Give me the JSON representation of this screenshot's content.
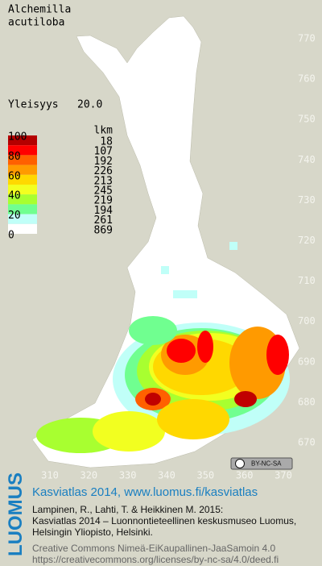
{
  "title": [
    "Alchemilla",
    "acutiloba"
  ],
  "frequency": {
    "label": "Yleisyys",
    "value": "20.0"
  },
  "legend": {
    "header": "lkm",
    "class_labels": [
      100,
      80,
      60,
      40,
      20,
      0
    ],
    "classes": [
      {
        "color": "#b40000",
        "count": 18
      },
      {
        "color": "#ff0000",
        "count": 107
      },
      {
        "color": "#ff6000",
        "count": 192
      },
      {
        "color": "#ff9a00",
        "count": 226
      },
      {
        "color": "#ffd800",
        "count": 213
      },
      {
        "color": "#f2ff20",
        "count": 245
      },
      {
        "color": "#a8ff30",
        "count": 219
      },
      {
        "color": "#70ff90",
        "count": 194
      },
      {
        "color": "#c0fff8",
        "count": 261
      },
      {
        "color": "#ffffff",
        "count": 869
      }
    ]
  },
  "map": {
    "yticks": [
      770,
      760,
      750,
      740,
      730,
      720,
      710,
      700,
      690,
      680,
      670
    ],
    "xticks": [
      310,
      320,
      330,
      340,
      350,
      360,
      370
    ]
  },
  "license_badge": "BY-NC-SA",
  "footer": {
    "brand": "LUOMUS",
    "heading": "Kasviatlas 2014, www.luomus.fi/kasviatlas",
    "citation": [
      "Lampinen, R., Lahti, T. & Heikkinen M. 2015:",
      "Kasviatlas 2014 – Luonnontieteellinen keskusmuseo Luomus,",
      "Helsingin Yliopisto, Helsinki."
    ],
    "license": [
      "Creative Commons Nimeä-EiKaupallinen-JaaSamoin 4.0",
      "https://creativecommons.org/licenses/by-nc-sa/4.0/deed.fi"
    ]
  }
}
